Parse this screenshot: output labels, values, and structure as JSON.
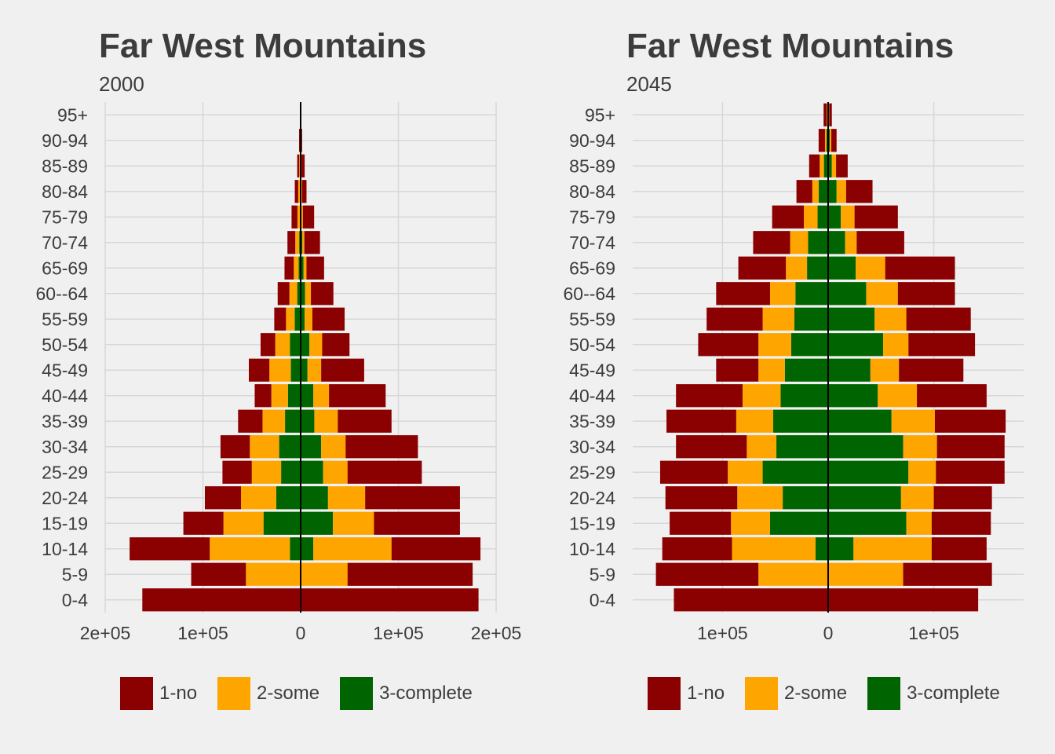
{
  "chart_data": [
    {
      "type": "bar",
      "title": "Far West Mountains",
      "subtitle": "2000",
      "orientation": "horizontal-pyramid",
      "categories": [
        "0-4",
        "5-9",
        "10-14",
        "15-19",
        "20-24",
        "25-29",
        "30-34",
        "35-39",
        "40-44",
        "45-49",
        "50-54",
        "55-59",
        "60--64",
        "65-69",
        "70-74",
        "75-79",
        "80-84",
        "85-89",
        "90-94",
        "95+"
      ],
      "xlim": [
        -200000,
        200000
      ],
      "xticks": [
        -200000,
        -100000,
        0,
        100000,
        200000
      ],
      "xtick_labels": [
        "2e+05",
        "1e+05",
        "0",
        "1e+05",
        "2e+05"
      ],
      "grid": true,
      "legend_position": "bottom",
      "series": [
        {
          "name": "1-no",
          "color": "#8b0000",
          "left": [
            162000,
            56000,
            82000,
            41000,
            37000,
            30000,
            30000,
            25000,
            17000,
            21000,
            15000,
            12000,
            12000,
            9500,
            8000,
            6000,
            3500,
            2000,
            900,
            350
          ],
          "right": [
            182000,
            128000,
            91000,
            88000,
            97000,
            76000,
            74000,
            55000,
            58000,
            44000,
            28000,
            33000,
            23000,
            18000,
            16000,
            11500,
            4500,
            3200,
            1100,
            300
          ]
        },
        {
          "name": "2-some",
          "color": "#ffa500",
          "left": [
            0,
            56000,
            82000,
            41000,
            36000,
            30000,
            30000,
            23000,
            17000,
            22000,
            15000,
            9000,
            8000,
            5000,
            4000,
            2500,
            2000,
            1200,
            600,
            200
          ],
          "right": [
            0,
            48000,
            80000,
            42000,
            38000,
            25000,
            25000,
            24000,
            16000,
            14000,
            13000,
            8000,
            6000,
            3000,
            2000,
            1500,
            1000,
            600,
            300,
            100
          ]
        },
        {
          "name": "3-complete",
          "color": "#006400",
          "left": [
            0,
            0,
            11000,
            38000,
            25000,
            20000,
            22000,
            16000,
            13000,
            10000,
            11000,
            6000,
            3500,
            2000,
            1500,
            800,
            500,
            300,
            100,
            50
          ],
          "right": [
            0,
            0,
            13000,
            33000,
            28000,
            23000,
            21000,
            14000,
            13000,
            7000,
            9000,
            4000,
            4500,
            3000,
            1800,
            800,
            500,
            300,
            100,
            50
          ]
        }
      ]
    },
    {
      "type": "bar",
      "title": "Far West Mountains",
      "subtitle": "2045",
      "orientation": "horizontal-pyramid",
      "categories": [
        "0-4",
        "5-9",
        "10-14",
        "15-19",
        "20-24",
        "25-29",
        "30-34",
        "35-39",
        "40-44",
        "45-49",
        "50-54",
        "55-59",
        "60--64",
        "65-69",
        "70-74",
        "75-79",
        "80-84",
        "85-89",
        "90-94",
        "95+"
      ],
      "xlim": [
        -185000,
        185000
      ],
      "xticks": [
        -100000,
        0,
        100000
      ],
      "xtick_labels": [
        "1e+05",
        "0",
        "1e+05"
      ],
      "grid": true,
      "legend_position": "bottom",
      "series": [
        {
          "name": "1-no",
          "color": "#8b0000",
          "left": [
            146000,
            97000,
            66000,
            58000,
            68000,
            64000,
            67000,
            66000,
            63000,
            40000,
            57000,
            53000,
            51000,
            45000,
            35000,
            30000,
            15000,
            10000,
            6000,
            3000
          ],
          "right": [
            142000,
            84000,
            52000,
            56000,
            55000,
            65000,
            64000,
            67000,
            66000,
            61000,
            63000,
            61000,
            54000,
            66000,
            45000,
            41000,
            25000,
            11000,
            5000,
            2500
          ]
        },
        {
          "name": "2-some",
          "color": "#ffa500",
          "left": [
            0,
            66000,
            79000,
            37000,
            43000,
            33000,
            28000,
            35000,
            36000,
            25000,
            31000,
            30000,
            24000,
            20000,
            17000,
            13000,
            6000,
            4000,
            1500,
            700
          ],
          "right": [
            0,
            71000,
            74000,
            24000,
            31000,
            26000,
            32000,
            41000,
            37000,
            27000,
            24000,
            30000,
            30000,
            28000,
            11000,
            13000,
            9000,
            4000,
            1500,
            500
          ]
        },
        {
          "name": "3-complete",
          "color": "#006400",
          "left": [
            0,
            0,
            12000,
            55000,
            43000,
            62000,
            49000,
            52000,
            45000,
            41000,
            35000,
            32000,
            31000,
            20000,
            19000,
            10000,
            9000,
            4000,
            1500,
            600
          ],
          "right": [
            0,
            0,
            24000,
            74000,
            69000,
            76000,
            71000,
            60000,
            47000,
            40000,
            52000,
            44000,
            36000,
            26000,
            16000,
            12000,
            8000,
            3500,
            1500,
            500
          ]
        }
      ]
    }
  ]
}
